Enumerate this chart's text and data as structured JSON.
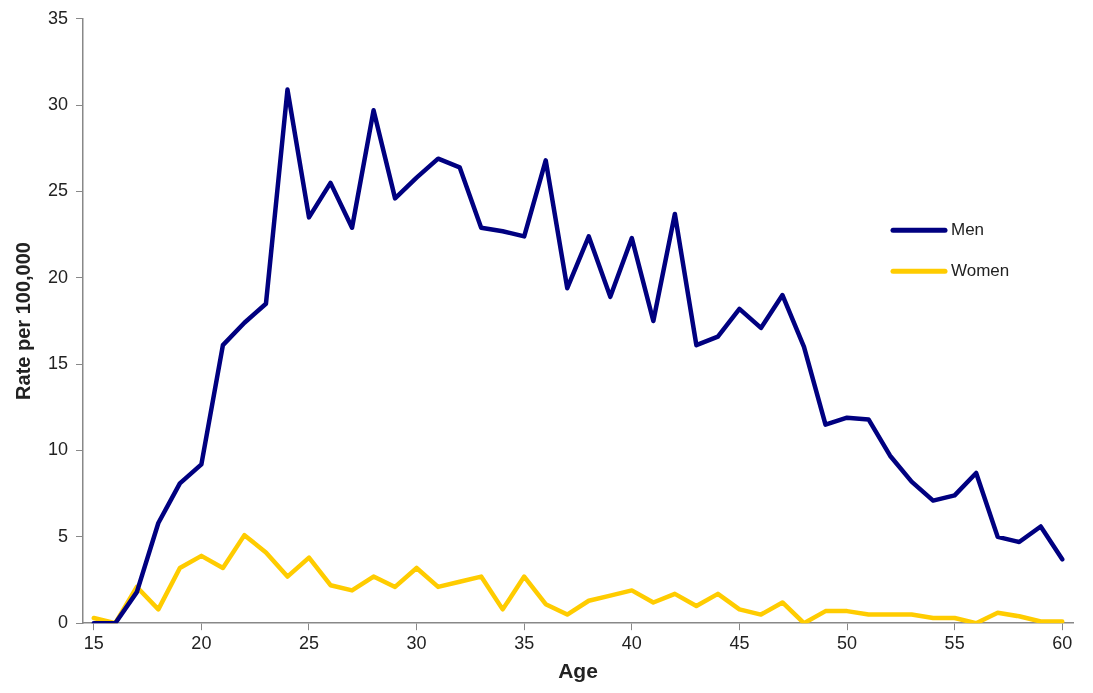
{
  "chart_data": {
    "type": "line",
    "xlabel": "Age",
    "ylabel": "Rate per 100,000",
    "x": [
      15,
      16,
      17,
      18,
      19,
      20,
      21,
      22,
      23,
      24,
      25,
      26,
      27,
      28,
      29,
      30,
      31,
      32,
      33,
      34,
      35,
      36,
      37,
      38,
      39,
      40,
      41,
      42,
      43,
      44,
      45,
      46,
      47,
      48,
      49,
      50,
      51,
      52,
      53,
      54,
      55,
      56,
      57,
      58,
      59,
      60
    ],
    "series": [
      {
        "name": "Men",
        "color": "#000080",
        "values": [
          0,
          0,
          1.8,
          5.8,
          8.1,
          9.2,
          16.1,
          17.4,
          18.5,
          30.9,
          23.5,
          25.5,
          22.9,
          29.7,
          24.6,
          25.8,
          26.9,
          26.4,
          22.9,
          22.7,
          22.4,
          26.8,
          19.4,
          22.4,
          18.9,
          22.3,
          17.5,
          23.7,
          16.1,
          16.6,
          18.2,
          17.1,
          19.0,
          16.0,
          11.5,
          11.9,
          11.8,
          9.7,
          8.2,
          7.1,
          7.4,
          8.7,
          5.0,
          4.7,
          5.6,
          3.7
        ]
      },
      {
        "name": "Women",
        "color": "#ffcc00",
        "values": [
          0.3,
          0,
          2.1,
          0.8,
          3.2,
          3.9,
          3.2,
          5.1,
          4.1,
          2.7,
          3.8,
          2.2,
          1.9,
          2.7,
          2.1,
          3.2,
          2.1,
          2.4,
          2.7,
          0.8,
          2.7,
          1.1,
          0.5,
          1.3,
          1.6,
          1.9,
          1.2,
          1.7,
          1.0,
          1.7,
          0.8,
          0.5,
          1.2,
          0,
          0.7,
          0.7,
          0.5,
          0.5,
          0.5,
          0.3,
          0.3,
          0,
          0.6,
          0.4,
          0.1,
          0.1
        ]
      }
    ],
    "xlim": [
      14.5,
      60.5
    ],
    "xticks": [
      15,
      20,
      25,
      30,
      35,
      40,
      45,
      50,
      55,
      60
    ],
    "ylim": [
      0,
      35
    ],
    "yticks": [
      0,
      5,
      10,
      15,
      20,
      25,
      30,
      35
    ],
    "grid": false,
    "legend": "right",
    "marker": "none",
    "line_style": "solid"
  }
}
